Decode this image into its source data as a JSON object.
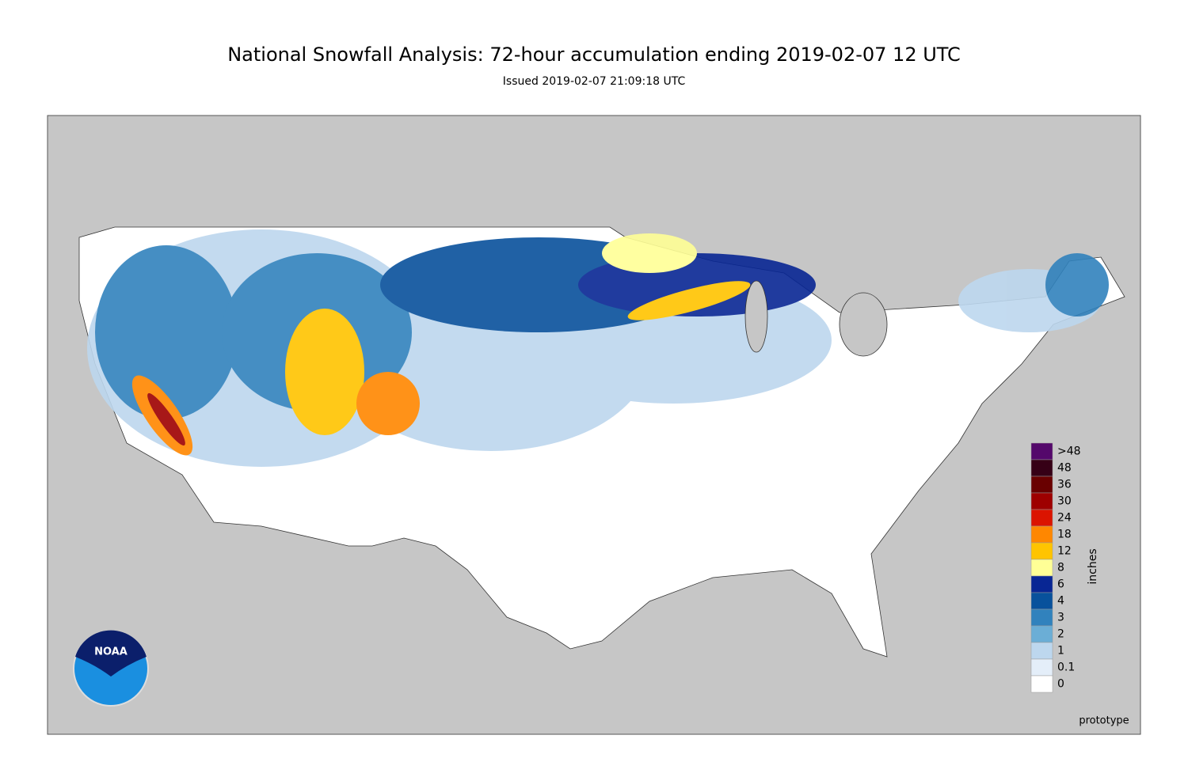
{
  "header": {
    "title": "National Snowfall Analysis: 72-hour accumulation ending 2019-02-07 12 UTC",
    "subtitle": "Issued 2019-02-07 21:09:18 UTC"
  },
  "legend": {
    "unit": "inches",
    "entries": [
      {
        "label": ">48",
        "color": "#54086b"
      },
      {
        "label": "48",
        "color": "#360016"
      },
      {
        "label": "36",
        "color": "#690000"
      },
      {
        "label": "30",
        "color": "#9e0000"
      },
      {
        "label": "24",
        "color": "#db1400"
      },
      {
        "label": "18",
        "color": "#ff8700"
      },
      {
        "label": "12",
        "color": "#ffc400"
      },
      {
        "label": "8",
        "color": "#ffff96"
      },
      {
        "label": "6",
        "color": "#082694"
      },
      {
        "label": "4",
        "color": "#08519c"
      },
      {
        "label": "3",
        "color": "#3182bd"
      },
      {
        "label": "2",
        "color": "#6baed6"
      },
      {
        "label": "1",
        "color": "#bdd7ee"
      },
      {
        "label": "0.1",
        "color": "#e4eef9"
      },
      {
        "label": "0",
        "color": "#ffffff"
      }
    ]
  },
  "footer": {
    "note": "prototype",
    "logo": "NOAA"
  }
}
